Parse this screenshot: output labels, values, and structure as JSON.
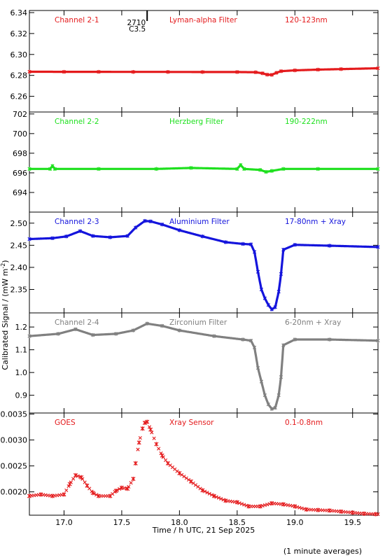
{
  "chart_data": [
    {
      "type": "line",
      "panel": "Channel 2-1",
      "labels": [
        "Channel 2-1",
        "Lyman-alpha Filter",
        "120-123nm"
      ],
      "color": "#e41a1c",
      "ylim": [
        6.245,
        6.342
      ],
      "yticks": [
        "6.26",
        "6.28",
        "6.30",
        "6.32",
        "6.34"
      ],
      "ytick_values": [
        6.26,
        6.28,
        6.3,
        6.32,
        6.34
      ],
      "x": [
        16.7,
        17.0,
        17.3,
        17.6,
        17.9,
        18.2,
        18.5,
        18.66,
        18.72,
        18.76,
        18.8,
        18.84,
        18.88,
        19.0,
        19.2,
        19.4,
        19.72
      ],
      "y": [
        6.2835,
        6.2834,
        6.2834,
        6.2833,
        6.2833,
        6.2832,
        6.2832,
        6.283,
        6.282,
        6.2807,
        6.2805,
        6.2825,
        6.284,
        6.2848,
        6.2855,
        6.286,
        6.2868
      ],
      "flare_marker": {
        "x": 17.72,
        "labels": [
          "2710",
          "C3.5"
        ]
      }
    },
    {
      "type": "line",
      "panel": "Channel 2-2",
      "labels": [
        "Channel 2-2",
        "Herzberg Filter",
        "190-222nm"
      ],
      "color": "#1ee01e",
      "ylim": [
        692.0,
        702.2
      ],
      "yticks": [
        "694",
        "696",
        "698",
        "700",
        "702"
      ],
      "ytick_values": [
        694,
        696,
        698,
        700,
        702
      ],
      "x": [
        16.7,
        16.88,
        16.9,
        16.92,
        17.3,
        17.8,
        18.1,
        18.5,
        18.53,
        18.56,
        18.7,
        18.75,
        18.8,
        18.9,
        19.2,
        19.72
      ],
      "y": [
        696.4,
        696.4,
        696.7,
        696.4,
        696.4,
        696.4,
        696.5,
        696.4,
        696.8,
        696.4,
        696.3,
        696.1,
        696.2,
        696.4,
        696.4,
        696.4
      ]
    },
    {
      "type": "line",
      "panel": "Channel 2-3",
      "labels": [
        "Channel 2-3",
        "Aluminium Filter",
        "17-80nm + Xray"
      ],
      "color": "#1414dc",
      "ylim": [
        2.297,
        2.525
      ],
      "yticks": [
        "2.35",
        "2.40",
        "2.45",
        "2.50"
      ],
      "ytick_values": [
        2.35,
        2.4,
        2.45,
        2.5
      ],
      "x": [
        16.7,
        16.9,
        17.02,
        17.14,
        17.25,
        17.4,
        17.55,
        17.62,
        17.7,
        17.75,
        17.85,
        18.0,
        18.2,
        18.4,
        18.55,
        18.62,
        18.65,
        18.68,
        18.71,
        18.74,
        18.77,
        18.8,
        18.83,
        18.86,
        18.88,
        18.9,
        19.0,
        19.3,
        19.72
      ],
      "y": [
        2.464,
        2.466,
        2.47,
        2.482,
        2.471,
        2.468,
        2.471,
        2.49,
        2.505,
        2.504,
        2.497,
        2.484,
        2.47,
        2.457,
        2.453,
        2.452,
        2.435,
        2.39,
        2.35,
        2.33,
        2.315,
        2.305,
        2.31,
        2.345,
        2.385,
        2.44,
        2.451,
        2.449,
        2.446
      ]
    },
    {
      "type": "line",
      "panel": "Channel 2-4",
      "labels": [
        "Channel 2-4",
        "Zirconium Filter",
        "6-20nm + Xray"
      ],
      "color": "#808080",
      "ylim": [
        0.822,
        1.262
      ],
      "yticks": [
        "0.9",
        "1.0",
        "1.1",
        "1.2"
      ],
      "ytick_values": [
        0.9,
        1.0,
        1.1,
        1.2
      ],
      "x": [
        16.7,
        16.95,
        17.1,
        17.25,
        17.45,
        17.6,
        17.72,
        17.85,
        18.0,
        18.3,
        18.55,
        18.62,
        18.65,
        18.68,
        18.71,
        18.74,
        18.77,
        18.8,
        18.83,
        18.86,
        18.88,
        18.9,
        19.0,
        19.3,
        19.72
      ],
      "y": [
        1.16,
        1.17,
        1.19,
        1.165,
        1.17,
        1.185,
        1.215,
        1.205,
        1.185,
        1.16,
        1.145,
        1.14,
        1.11,
        1.02,
        0.96,
        0.9,
        0.86,
        0.84,
        0.845,
        0.9,
        0.98,
        1.12,
        1.145,
        1.145,
        1.14
      ]
    },
    {
      "type": "scatter",
      "panel": "GOES",
      "labels": [
        "GOES",
        "Xray Sensor",
        "0.1-0.8nm"
      ],
      "color": "#e41a1c",
      "ylim": [
        0.00155,
        0.00352
      ],
      "yticks": [
        "0.0020",
        "0.0025",
        "0.0030",
        "0.0035"
      ],
      "ytick_values": [
        0.002,
        0.0025,
        0.003,
        0.0035
      ],
      "x": [
        16.7,
        16.8,
        16.9,
        17.0,
        17.05,
        17.1,
        17.15,
        17.2,
        17.25,
        17.3,
        17.4,
        17.45,
        17.5,
        17.55,
        17.6,
        17.62,
        17.65,
        17.68,
        17.7,
        17.72,
        17.75,
        17.8,
        17.85,
        17.9,
        18.0,
        18.1,
        18.2,
        18.3,
        18.4,
        18.5,
        18.6,
        18.7,
        18.8,
        18.9,
        19.0,
        19.1,
        19.2,
        19.3,
        19.4,
        19.5,
        19.6,
        19.7
      ],
      "y": [
        0.00192,
        0.00195,
        0.00192,
        0.00195,
        0.00215,
        0.00232,
        0.00228,
        0.00212,
        0.00198,
        0.00192,
        0.00192,
        0.00202,
        0.00208,
        0.00206,
        0.00225,
        0.00255,
        0.00295,
        0.00322,
        0.00333,
        0.00335,
        0.0032,
        0.00292,
        0.0027,
        0.00255,
        0.00236,
        0.0022,
        0.00203,
        0.00192,
        0.00183,
        0.0018,
        0.00172,
        0.00172,
        0.00178,
        0.00176,
        0.00172,
        0.00166,
        0.00165,
        0.00164,
        0.00162,
        0.0016,
        0.00158,
        0.00157
      ]
    }
  ],
  "axes": {
    "xlim": [
      16.7,
      19.72
    ],
    "xticks": [
      "17.0",
      "17.5",
      "18.0",
      "18.5",
      "19.0",
      "19.5"
    ],
    "xtick_values": [
      17.0,
      17.5,
      18.0,
      18.5,
      19.0,
      19.5
    ],
    "xlabel": "Time / h UTC, 21 Sep 2025",
    "ylabel": "Calibrated Signal / (mW m",
    "ylabel_sup": "-2",
    "ylabel_end": ")"
  },
  "footer": "(1 minute averages)"
}
